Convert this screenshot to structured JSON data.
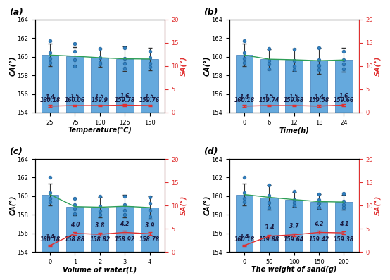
{
  "chart_data": [
    {
      "type": "bar",
      "label": "(a)",
      "x_label": "Temperature(℃)",
      "y_label": "CA(°)",
      "y2_label": "SA(°)",
      "categories": [
        "25",
        "75",
        "100",
        "125",
        "150"
      ],
      "ylim": [
        154,
        164
      ],
      "yticks": [
        154,
        156,
        158,
        160,
        162,
        164
      ],
      "y2lim": [
        0,
        20
      ],
      "y2ticks": [
        0,
        5,
        10,
        15,
        20
      ],
      "data_labels": true,
      "series": [
        {
          "type": "bar",
          "color": "#4a9ad8",
          "values": [
            160.18,
            160.06,
            159.9,
            159.78,
            159.76
          ],
          "errors": [
            1.2,
            1.0,
            1.0,
            1.3,
            1.2
          ],
          "points": [
            [
              161.7,
              160.4,
              159.8,
              159.4
            ],
            [
              161.4,
              160.6,
              159.7,
              159.0
            ],
            [
              160.9,
              159.9,
              159.4,
              159.2
            ],
            [
              161.0,
              159.8,
              159.3,
              158.8
            ],
            [
              160.6,
              159.9,
              159.3,
              158.9
            ]
          ]
        },
        {
          "type": "line",
          "axis": "y2",
          "color": "#e03030",
          "values": [
            1.4,
            1.5,
            1.5,
            1.6,
            1.5
          ],
          "errors": [
            0.2,
            0.2,
            0.2,
            0.2,
            0.2
          ]
        }
      ]
    },
    {
      "type": "bar",
      "label": "(b)",
      "x_label": "Time(h)",
      "y_label": "CA(°)",
      "y2_label": "SA(°)",
      "categories": [
        "0",
        "6",
        "12",
        "18",
        "24"
      ],
      "ylim": [
        154,
        164
      ],
      "yticks": [
        154,
        156,
        158,
        160,
        162,
        164
      ],
      "y2lim": [
        0,
        20
      ],
      "y2ticks": [
        0,
        5,
        10,
        15,
        20
      ],
      "data_labels": true,
      "series": [
        {
          "type": "bar",
          "color": "#4a9ad8",
          "values": [
            160.18,
            159.74,
            159.68,
            159.58,
            159.66
          ],
          "errors": [
            1.2,
            1.1,
            1.2,
            1.4,
            1.3
          ],
          "points": [
            [
              161.7,
              160.4,
              159.8,
              159.4
            ],
            [
              160.9,
              159.6,
              159.2,
              158.7
            ],
            [
              160.8,
              159.6,
              159.0,
              158.6
            ],
            [
              161.0,
              159.7,
              159.1,
              158.6
            ],
            [
              160.6,
              159.7,
              159.2,
              158.7
            ]
          ]
        },
        {
          "type": "line",
          "axis": "y2",
          "color": "#e03030",
          "values": [
            1.4,
            1.5,
            1.5,
            1.4,
            1.6
          ],
          "errors": [
            0.2,
            0.2,
            0.2,
            0.2,
            0.2
          ]
        }
      ]
    },
    {
      "type": "bar",
      "label": "(c)",
      "x_label": "Volume of water(L)",
      "y_label": "CA(°)",
      "y2_label": "SA(°)",
      "categories": [
        "0",
        "1",
        "2",
        "3",
        "4"
      ],
      "ylim": [
        154,
        164
      ],
      "yticks": [
        154,
        156,
        158,
        160,
        162,
        164
      ],
      "y2lim": [
        0,
        20
      ],
      "y2ticks": [
        0,
        5,
        10,
        15,
        20
      ],
      "data_labels": true,
      "series": [
        {
          "type": "bar",
          "color": "#4a9ad8",
          "values": [
            160.18,
            158.88,
            158.82,
            158.92,
            158.78
          ],
          "errors": [
            1.2,
            0.9,
            1.1,
            1.2,
            1.2
          ],
          "points": [
            [
              162.0,
              160.4,
              159.8,
              159.4
            ],
            [
              159.8,
              159.1,
              158.6,
              158.1
            ],
            [
              160.0,
              158.9,
              158.4,
              158.0
            ],
            [
              160.0,
              159.1,
              158.5,
              158.0
            ],
            [
              159.9,
              159.2,
              158.5,
              157.8
            ]
          ]
        },
        {
          "type": "line",
          "axis": "y2",
          "color": "#e03030",
          "values": [
            1.4,
            4.0,
            3.8,
            4.2,
            3.9
          ],
          "errors": [
            0.2,
            0.3,
            0.3,
            0.3,
            0.3
          ]
        }
      ]
    },
    {
      "type": "bar",
      "label": "(d)",
      "x_label": "The weight of sand(g)",
      "y_label": "CA(°)",
      "y2_label": "SA(°)",
      "categories": [
        "0",
        "50",
        "100",
        "150",
        "200"
      ],
      "ylim": [
        154,
        164
      ],
      "yticks": [
        154,
        156,
        158,
        160,
        162,
        164
      ],
      "y2lim": [
        0,
        20
      ],
      "y2ticks": [
        0,
        5,
        10,
        15,
        20
      ],
      "data_labels": true,
      "series": [
        {
          "type": "bar",
          "color": "#4a9ad8",
          "values": [
            160.18,
            159.88,
            159.64,
            159.42,
            159.38
          ],
          "errors": [
            1.2,
            1.3,
            0.8,
            0.8,
            0.8
          ],
          "points": [
            [
              162.0,
              160.4,
              159.8,
              159.4
            ],
            [
              161.2,
              160.1,
              159.3,
              158.8
            ],
            [
              160.5,
              159.6,
              159.3,
              159.0
            ],
            [
              160.2,
              159.6,
              159.2,
              158.8
            ],
            [
              160.3,
              159.5,
              159.1,
              158.8
            ]
          ]
        },
        {
          "type": "line",
          "axis": "y2",
          "color": "#e03030",
          "values": [
            1.4,
            3.4,
            3.7,
            4.2,
            4.1
          ],
          "errors": [
            0.2,
            0.3,
            0.3,
            0.3,
            0.3
          ]
        }
      ]
    }
  ]
}
